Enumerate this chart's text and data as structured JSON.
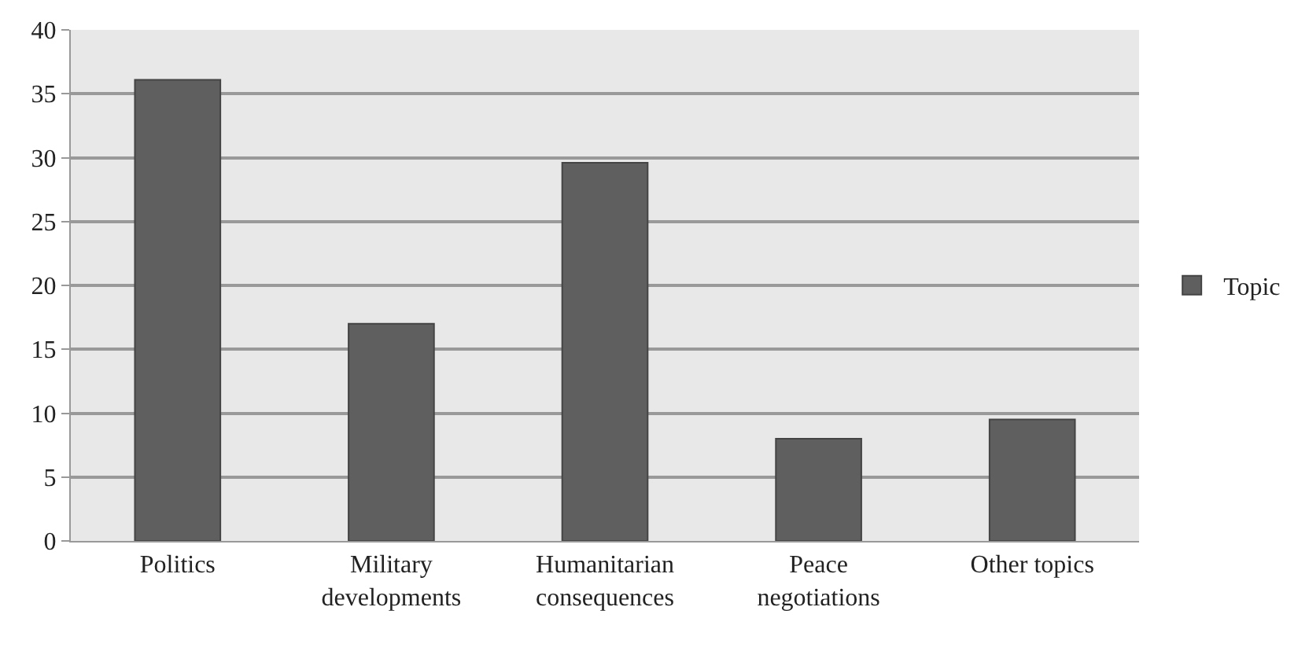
{
  "chart_data": {
    "type": "bar",
    "categories": [
      "Politics",
      "Military\ndevelopments",
      "Humanitarian\nconsequences",
      "Peace\nnegotiations",
      "Other topics"
    ],
    "series": [
      {
        "name": "Topic",
        "color": "#5f5f5f",
        "values": [
          36.1,
          17.0,
          29.6,
          8.0,
          9.5
        ]
      }
    ],
    "ylim": [
      0,
      40
    ],
    "yticks": [
      0,
      5,
      10,
      15,
      20,
      25,
      30,
      35,
      40
    ],
    "grid": "y",
    "legend": "right"
  }
}
